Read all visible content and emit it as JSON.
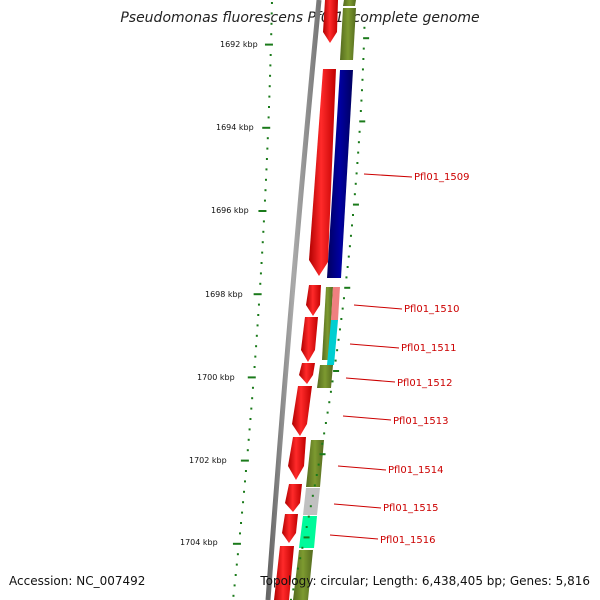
{
  "title": "Pseudomonas fluorescens Pf0-1, complete genome",
  "footer": {
    "accession": "Accession: NC_007492",
    "topology": "Topology: circular; Length: 6,438,405 bp; Genes: 5,816"
  },
  "colors": {
    "backbone": "#808080",
    "tick": "#1a7a1a",
    "label_line": "#cc0000",
    "label_text": "#cc0000",
    "forward_gene": "#ff0000",
    "olive": "#6b8e23",
    "navy": "#000080",
    "salmon": "#f08080",
    "cyan": "#00ced1",
    "gray": "#c0c0c0",
    "spring": "#00fa9a"
  },
  "ticks": [
    "1692 kbp",
    "1694 kbp",
    "1696 kbp",
    "1698 kbp",
    "1700 kbp",
    "1702 kbp",
    "1704 kbp"
  ],
  "labels": [
    "Pfl01_1509",
    "Pfl01_1510",
    "Pfl01_1511",
    "Pfl01_1512",
    "Pfl01_1513",
    "Pfl01_1514",
    "Pfl01_1515",
    "Pfl01_1516"
  ]
}
